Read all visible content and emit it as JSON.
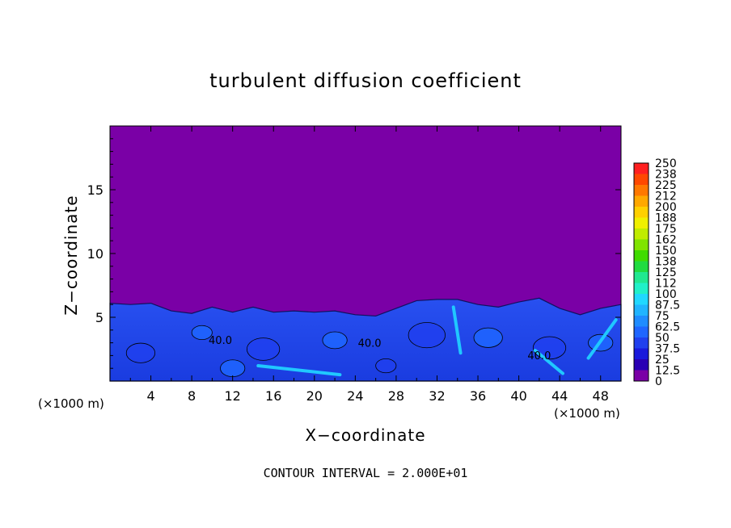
{
  "chart_data": {
    "type": "heatmap",
    "title": "turbulent diffusion coefficient",
    "xlabel": "X−coordinate",
    "ylabel": "Z−coordinate",
    "x_unit_label": "(×1000 m)",
    "x_ticks": [
      4,
      8,
      12,
      16,
      20,
      24,
      28,
      32,
      36,
      40,
      44,
      48
    ],
    "y_ticks": [
      5,
      10,
      15
    ],
    "xlim": [
      0,
      50
    ],
    "ylim": [
      0,
      20
    ],
    "colorbar_levels": [
      "0",
      "12.5",
      "25",
      "37.5",
      "50",
      "62.5",
      "75",
      "87.5",
      "100",
      "112",
      "125",
      "138",
      "150",
      "162",
      "175",
      "188",
      "200",
      "212",
      "225",
      "238",
      "250"
    ],
    "colorbar_colors": [
      "#7a00a6",
      "#2a00b4",
      "#1a1adc",
      "#2040ee",
      "#1f66ff",
      "#1f8cff",
      "#20b4ff",
      "#20d8ff",
      "#20f0c8",
      "#20e890",
      "#20dc40",
      "#40dc00",
      "#80e400",
      "#c0ec00",
      "#f0f000",
      "#ffd000",
      "#ffa800",
      "#ff7800",
      "#ff4800",
      "#ff2020",
      "#ff8080"
    ],
    "contour_labels": [
      {
        "x": 10.8,
        "z": 2.9,
        "text": "40.0"
      },
      {
        "x": 25.4,
        "z": 2.7,
        "text": "40.0"
      },
      {
        "x": 42.0,
        "z": 1.7,
        "text": "40.0"
      }
    ],
    "boundary_layer_top_profile": [
      [
        0,
        6.1
      ],
      [
        2,
        6.0
      ],
      [
        4,
        6.1
      ],
      [
        6,
        5.5
      ],
      [
        8,
        5.3
      ],
      [
        10,
        5.8
      ],
      [
        12,
        5.4
      ],
      [
        14,
        5.8
      ],
      [
        16,
        5.4
      ],
      [
        18,
        5.5
      ],
      [
        20,
        5.4
      ],
      [
        22,
        5.5
      ],
      [
        24,
        5.2
      ],
      [
        26,
        5.1
      ],
      [
        28,
        5.7
      ],
      [
        30,
        6.3
      ],
      [
        32,
        6.4
      ],
      [
        34,
        6.4
      ],
      [
        36,
        6.0
      ],
      [
        38,
        5.8
      ],
      [
        40,
        6.2
      ],
      [
        42,
        6.5
      ],
      [
        44,
        5.7
      ],
      [
        46,
        5.2
      ],
      [
        48,
        5.7
      ],
      [
        50,
        6.0
      ]
    ],
    "grid": false,
    "colorbar": "right"
  },
  "footer": "CONTOUR INTERVAL = 2.000E+01"
}
